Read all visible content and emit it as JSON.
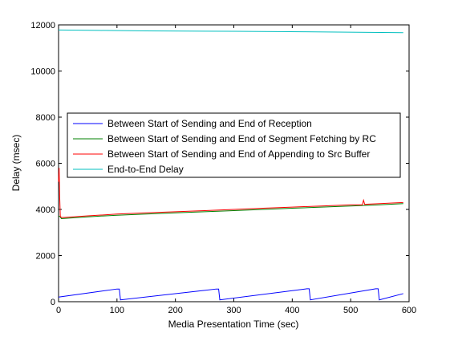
{
  "chart_data": {
    "type": "line",
    "title": "",
    "xlabel": "Media Presentation Time (sec)",
    "ylabel": "Delay (msec)",
    "xlim": [
      0,
      600
    ],
    "ylim": [
      0,
      12000
    ],
    "xticks": [
      0,
      100,
      200,
      300,
      400,
      500,
      600
    ],
    "yticks": [
      0,
      2000,
      4000,
      6000,
      8000,
      10000,
      12000
    ],
    "grid": false,
    "legend_position": "center-left",
    "series": [
      {
        "name": "Between Start of Sending and End of Reception",
        "color": "#0000ff",
        "x": [
          0,
          100,
          104,
          106,
          270,
          274,
          276,
          425,
          429,
          431,
          543,
          547,
          549,
          590
        ],
        "y": [
          200,
          550,
          550,
          80,
          550,
          550,
          80,
          560,
          560,
          80,
          560,
          560,
          80,
          350
        ]
      },
      {
        "name": "Between Start of Sending and End of Segment Fetching by RC",
        "color": "#008000",
        "x": [
          0,
          2,
          5,
          50,
          100,
          150,
          200,
          250,
          300,
          350,
          400,
          450,
          500,
          550,
          590
        ],
        "y": [
          3700,
          3700,
          3600,
          3680,
          3750,
          3800,
          3850,
          3900,
          3950,
          4000,
          4050,
          4100,
          4150,
          4200,
          4250
        ]
      },
      {
        "name": "Between Start of Sending and End of Appending to Src Buffer",
        "color": "#ff0000",
        "x": [
          0,
          1,
          2,
          3,
          5,
          10,
          50,
          100,
          150,
          200,
          250,
          300,
          350,
          400,
          450,
          500,
          520,
          522,
          524,
          550,
          590
        ],
        "y": [
          5200,
          5800,
          4500,
          3700,
          3650,
          3650,
          3720,
          3800,
          3850,
          3900,
          3950,
          4000,
          4050,
          4100,
          4150,
          4200,
          4200,
          4400,
          4220,
          4250,
          4300
        ]
      },
      {
        "name": "End-to-End Delay",
        "color": "#00bfbf",
        "x": [
          0,
          70,
          150,
          300,
          420,
          590
        ],
        "y": [
          11780,
          11760,
          11740,
          11720,
          11700,
          11660
        ]
      }
    ]
  }
}
